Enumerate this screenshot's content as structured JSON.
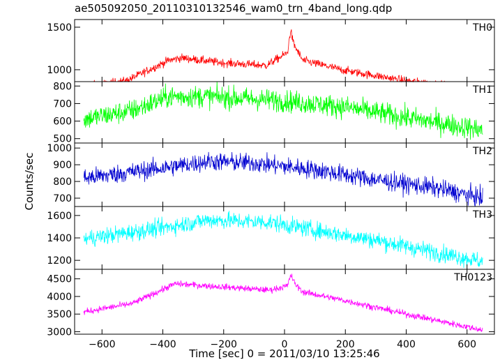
{
  "title": "ae505092050_20110310132546_wam0_trn_4band_long.qdp",
  "chart_data": {
    "type": "line",
    "title": "ae505092050_20110310132546_wam0_trn_4band_long.qdp",
    "xlabel": "Time [sec] 0 = 2011/03/10 13:25:46",
    "ylabel": "Counts/sec",
    "xlim": [
      -690,
      690
    ],
    "xticks": [
      -600,
      -400,
      -200,
      0,
      200,
      400,
      600
    ],
    "x_tick_labels": [
      "−600",
      "−400",
      "−200",
      "0",
      "200",
      "400",
      "600"
    ],
    "grid": false,
    "panels": [
      {
        "name": "TH0",
        "color": "#ff0000",
        "ylim": [
          860,
          1590
        ],
        "yticks": [
          1000,
          1500
        ],
        "profile_x": [
          -660,
          -520,
          -380,
          -340,
          -200,
          -60,
          10,
          20,
          30,
          60,
          200,
          400,
          650
        ],
        "profile_y": [
          800,
          870,
          1110,
          1140,
          1080,
          1050,
          1200,
          1470,
          1300,
          1110,
          990,
          870,
          760
        ],
        "noise": 35
      },
      {
        "name": "TH1",
        "color": "#00ff00",
        "ylim": [
          475,
          825
        ],
        "yticks": [
          500,
          600,
          700,
          800
        ],
        "profile_x": [
          -660,
          -500,
          -380,
          -250,
          0,
          200,
          400,
          650
        ],
        "profile_y": [
          610,
          660,
          740,
          740,
          715,
          680,
          620,
          550
        ],
        "noise": 45
      },
      {
        "name": "TH2",
        "color": "#0000d0",
        "ylim": [
          650,
          1030
        ],
        "yticks": [
          700,
          800,
          900,
          1000
        ],
        "profile_x": [
          -660,
          -400,
          -250,
          -100,
          100,
          300,
          500,
          650
        ],
        "profile_y": [
          820,
          880,
          920,
          910,
          870,
          810,
          760,
          700
        ],
        "noise": 40
      },
      {
        "name": "TH3",
        "color": "#00ffff",
        "ylim": [
          1120,
          1680
        ],
        "yticks": [
          1200,
          1400,
          1600
        ],
        "profile_x": [
          -660,
          -400,
          -250,
          -50,
          100,
          300,
          500,
          650
        ],
        "profile_y": [
          1390,
          1490,
          1560,
          1540,
          1470,
          1380,
          1270,
          1190
        ],
        "noise": 55
      },
      {
        "name": "TH0123",
        "color": "#ff00ff",
        "ylim": [
          2930,
          4770
        ],
        "yticks": [
          3000,
          3500,
          4000,
          4500
        ],
        "profile_x": [
          -660,
          -500,
          -360,
          -200,
          -50,
          10,
          20,
          35,
          60,
          200,
          400,
          650
        ],
        "profile_y": [
          3560,
          3800,
          4360,
          4270,
          4180,
          4300,
          4620,
          4350,
          4130,
          3880,
          3500,
          3050
        ],
        "noise": 65
      }
    ]
  }
}
